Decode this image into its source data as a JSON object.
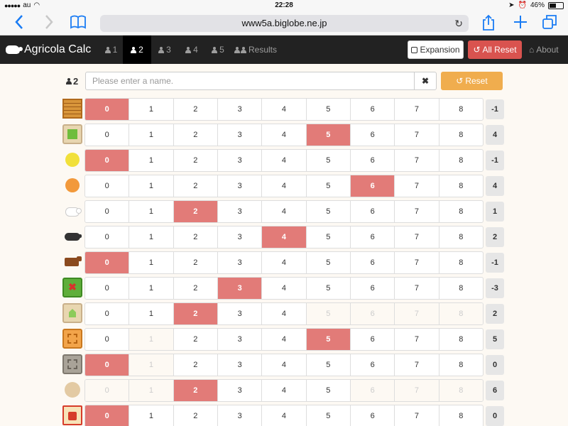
{
  "status_bar": {
    "carrier": "au",
    "time": "22:28",
    "battery": "46%"
  },
  "browser": {
    "url": "www5a.biglobe.ne.jp",
    "icons": [
      "back-icon",
      "forward-icon",
      "bookmarks-icon",
      "reload-icon",
      "share-icon",
      "new-tab-icon",
      "tabs-icon"
    ]
  },
  "navbar": {
    "brand": "Agricola Calc",
    "tabs": [
      {
        "label": "1",
        "active": false
      },
      {
        "label": "2",
        "active": true
      },
      {
        "label": "3",
        "active": false
      },
      {
        "label": "4",
        "active": false
      },
      {
        "label": "5",
        "active": false
      }
    ],
    "results_label": "Results",
    "expansion_label": "Expansion",
    "all_reset_label": "All Reset",
    "about_label": "About"
  },
  "player": {
    "number": "2",
    "name_value": "",
    "name_placeholder": "Please enter a name.",
    "clear_label": "✖",
    "reset_label": "Reset"
  },
  "colors": {
    "selected": "#e27b78",
    "navbar": "#222222",
    "all_reset": "#d9534f",
    "reset": "#f0ad4e"
  },
  "scores": [
    {
      "icon": "fields-icon",
      "cells": [
        "0",
        "1",
        "2",
        "3",
        "4",
        "5",
        "6",
        "7",
        "8"
      ],
      "selected": 0,
      "disabled": [],
      "total": "-1"
    },
    {
      "icon": "pastures-icon",
      "cells": [
        "0",
        "1",
        "2",
        "3",
        "4",
        "5",
        "6",
        "7",
        "8"
      ],
      "selected": 5,
      "disabled": [],
      "total": "4"
    },
    {
      "icon": "grain-icon",
      "cells": [
        "0",
        "1",
        "2",
        "3",
        "4",
        "5",
        "6",
        "7",
        "8"
      ],
      "selected": 0,
      "disabled": [],
      "total": "-1"
    },
    {
      "icon": "vegetable-icon",
      "cells": [
        "0",
        "1",
        "2",
        "3",
        "4",
        "5",
        "6",
        "7",
        "8"
      ],
      "selected": 6,
      "disabled": [],
      "total": "4"
    },
    {
      "icon": "sheep-icon",
      "cells": [
        "0",
        "1",
        "2",
        "3",
        "4",
        "5",
        "6",
        "7",
        "8"
      ],
      "selected": 2,
      "disabled": [],
      "total": "1"
    },
    {
      "icon": "wild-boar-icon",
      "cells": [
        "0",
        "1",
        "2",
        "3",
        "4",
        "5",
        "6",
        "7",
        "8"
      ],
      "selected": 4,
      "disabled": [],
      "total": "2"
    },
    {
      "icon": "cattle-icon",
      "cells": [
        "0",
        "1",
        "2",
        "3",
        "4",
        "5",
        "6",
        "7",
        "8"
      ],
      "selected": 0,
      "disabled": [],
      "total": "-1"
    },
    {
      "icon": "unused-space-icon",
      "cells": [
        "0",
        "1",
        "2",
        "3",
        "4",
        "5",
        "6",
        "7",
        "8"
      ],
      "selected": 3,
      "disabled": [],
      "total": "-3"
    },
    {
      "icon": "fenced-stable-icon",
      "cells": [
        "0",
        "1",
        "2",
        "3",
        "4",
        "5",
        "6",
        "7",
        "8"
      ],
      "selected": 2,
      "disabled": [
        5,
        6,
        7,
        8
      ],
      "total": "2"
    },
    {
      "icon": "clay-room-icon",
      "cells": [
        "0",
        "1",
        "2",
        "3",
        "4",
        "5",
        "6",
        "7",
        "8"
      ],
      "selected": 5,
      "disabled": [
        1
      ],
      "total": "5"
    },
    {
      "icon": "stone-room-icon",
      "cells": [
        "0",
        "1",
        "2",
        "3",
        "4",
        "5",
        "6",
        "7",
        "8"
      ],
      "selected": 0,
      "disabled": [
        1
      ],
      "total": "0"
    },
    {
      "icon": "family-member-icon",
      "cells": [
        "0",
        "1",
        "2",
        "3",
        "4",
        "5",
        "6",
        "7",
        "8"
      ],
      "selected": 2,
      "disabled": [
        0,
        1,
        6,
        7,
        8
      ],
      "total": "6"
    },
    {
      "icon": "card-points-icon",
      "cells": [
        "0",
        "1",
        "2",
        "3",
        "4",
        "5",
        "6",
        "7",
        "8"
      ],
      "selected": 0,
      "disabled": [],
      "total": "0"
    }
  ]
}
